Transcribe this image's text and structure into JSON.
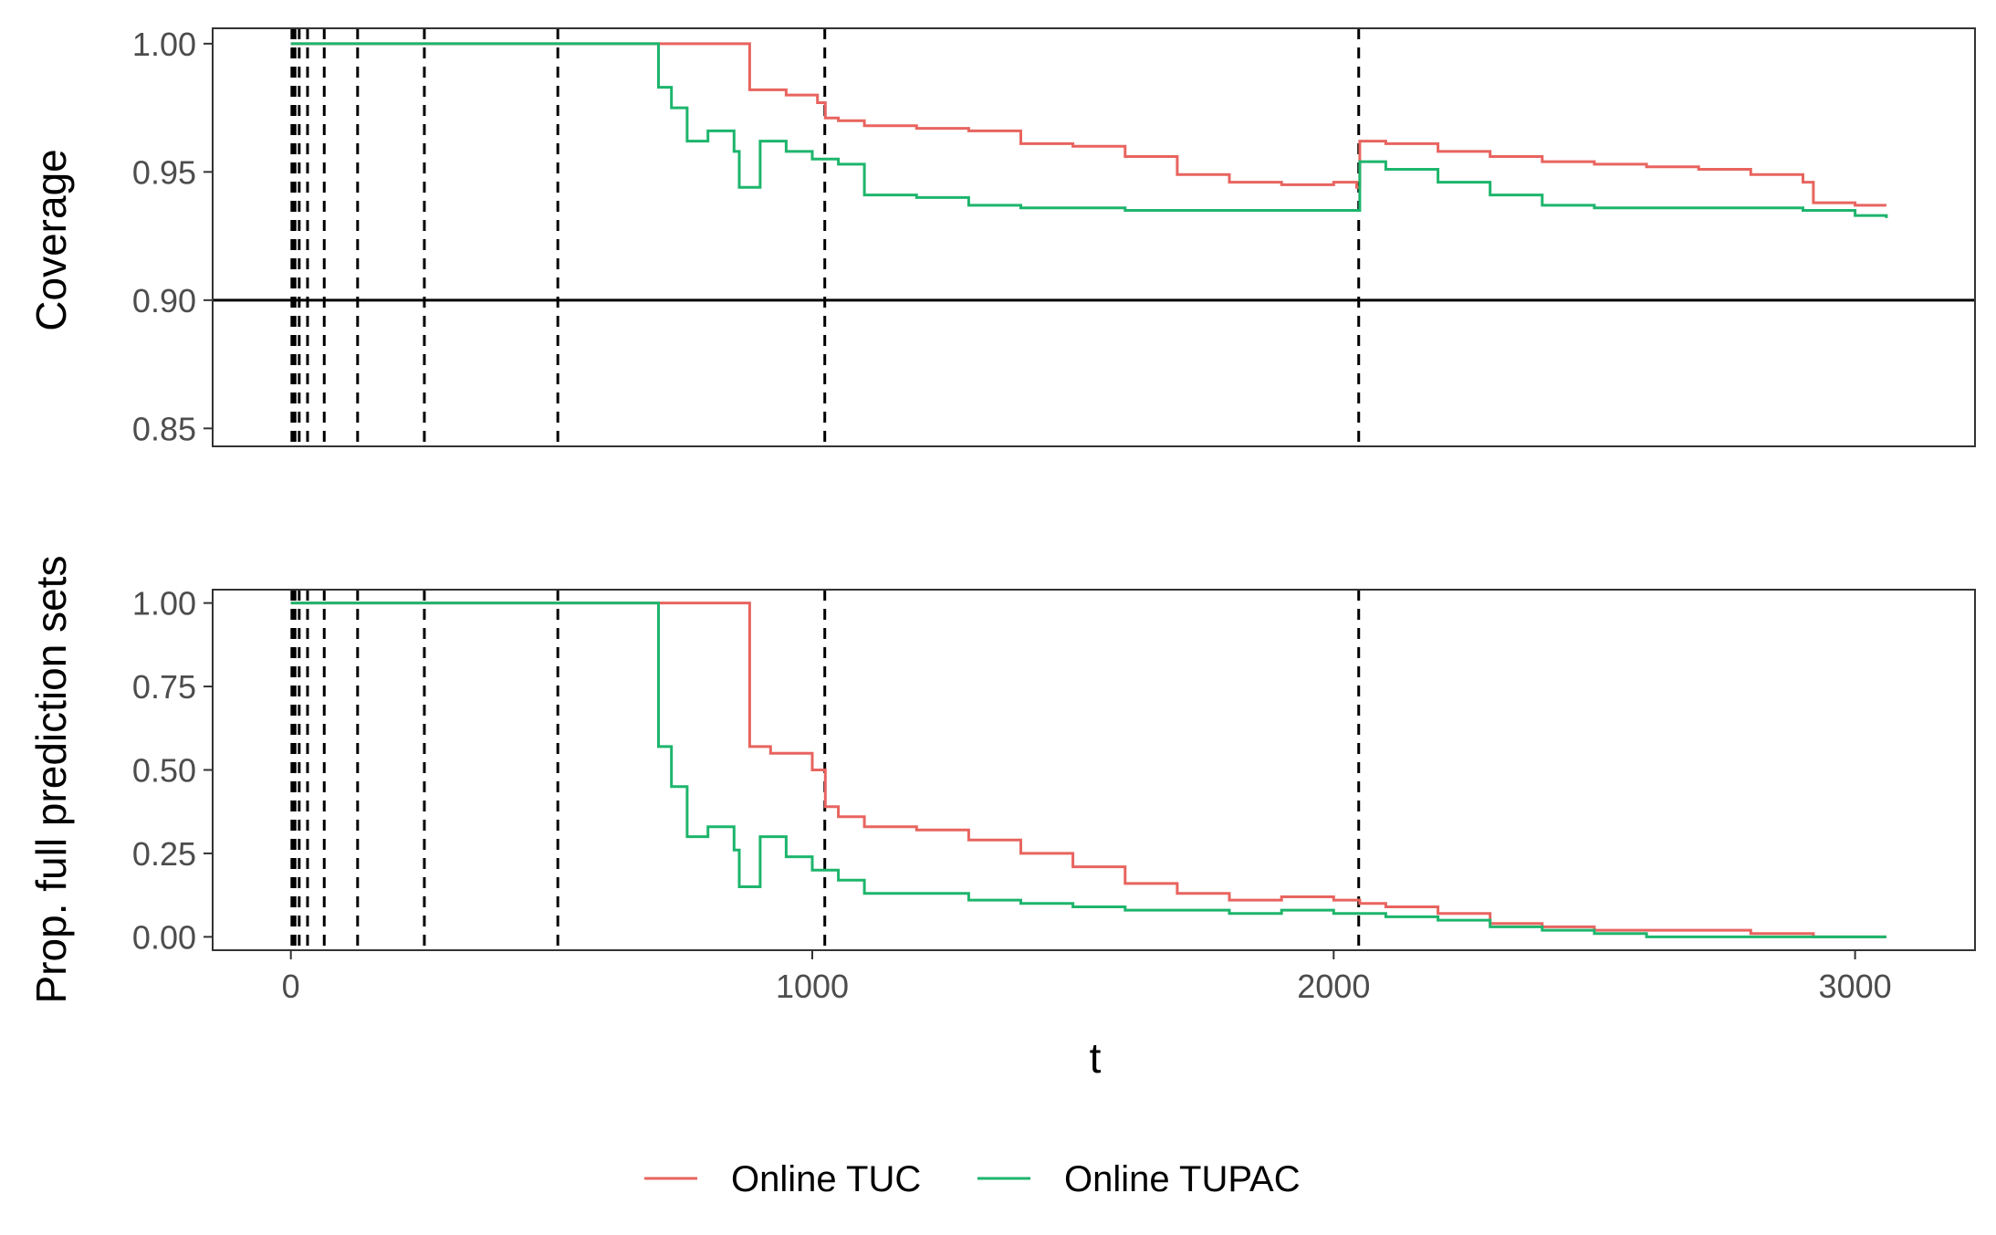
{
  "chart_data": {
    "type": "line",
    "xlabel": "t",
    "shared_ylabel": "Prop. full prediction sets",
    "x_ticks": [
      0,
      1000,
      2000,
      3000
    ],
    "xlim": [
      -150,
      3230
    ],
    "vertical_lines": [
      2,
      4,
      8,
      16,
      32,
      64,
      128,
      256,
      512,
      1024,
      2048
    ],
    "legend": {
      "position": "bottom",
      "entries": [
        {
          "name": "Online TUC",
          "color": "#e8645f"
        },
        {
          "name": "Online TUPAC",
          "color": "#1db56c"
        }
      ]
    },
    "panels": [
      {
        "name": "coverage",
        "ylabel": "Coverage",
        "ylim": [
          0.843,
          1.006
        ],
        "y_ticks": [
          "1.00",
          "0.95",
          "0.90",
          "0.85"
        ],
        "y_tick_values": [
          1.0,
          0.95,
          0.9,
          0.85
        ],
        "hline": 0.9,
        "series": [
          {
            "name": "Online TUC",
            "color": "#e8645f",
            "x": [
              0,
              700,
              875,
              880,
              950,
              1010,
              1025,
              1050,
              1100,
              1200,
              1300,
              1400,
              1500,
              1600,
              1700,
              1800,
              1900,
              2000,
              2044,
              2050,
              2100,
              2200,
              2300,
              2400,
              2500,
              2600,
              2700,
              2800,
              2900,
              2920,
              3000,
              3060
            ],
            "values": [
              1.0,
              1.0,
              1.0,
              0.982,
              0.98,
              0.977,
              0.971,
              0.97,
              0.968,
              0.967,
              0.966,
              0.961,
              0.96,
              0.956,
              0.949,
              0.946,
              0.945,
              0.946,
              0.944,
              0.962,
              0.961,
              0.958,
              0.956,
              0.954,
              0.953,
              0.952,
              0.951,
              0.949,
              0.946,
              0.938,
              0.937,
              0.937
            ]
          },
          {
            "name": "Online TUPAC",
            "color": "#1db56c",
            "x": [
              0,
              700,
              705,
              730,
              760,
              800,
              850,
              860,
              880,
              900,
              950,
              1000,
              1050,
              1100,
              1200,
              1300,
              1400,
              1500,
              1600,
              1700,
              1800,
              1900,
              2000,
              2044,
              2050,
              2100,
              2200,
              2300,
              2400,
              2500,
              2600,
              2700,
              2800,
              2900,
              3000,
              3060
            ],
            "values": [
              1.0,
              1.0,
              0.983,
              0.975,
              0.962,
              0.966,
              0.958,
              0.944,
              0.944,
              0.962,
              0.958,
              0.955,
              0.953,
              0.941,
              0.94,
              0.937,
              0.936,
              0.936,
              0.935,
              0.935,
              0.935,
              0.935,
              0.935,
              0.935,
              0.954,
              0.951,
              0.946,
              0.941,
              0.937,
              0.936,
              0.936,
              0.936,
              0.936,
              0.935,
              0.933,
              0.932
            ]
          }
        ]
      },
      {
        "name": "prop-full",
        "ylabel": "Prop. full prediction sets",
        "ylim": [
          -0.04,
          1.04
        ],
        "y_ticks": [
          "1.00",
          "0.75",
          "0.50",
          "0.25",
          "0.00"
        ],
        "y_tick_values": [
          1.0,
          0.75,
          0.5,
          0.25,
          0.0
        ],
        "series": [
          {
            "name": "Online TUC",
            "color": "#e8645f",
            "x": [
              0,
              700,
              875,
              880,
              920,
              950,
              1000,
              1025,
              1050,
              1100,
              1200,
              1300,
              1400,
              1500,
              1600,
              1700,
              1800,
              1900,
              2000,
              2050,
              2100,
              2200,
              2300,
              2400,
              2500,
              2600,
              2700,
              2800,
              2900,
              2920,
              3000,
              3060
            ],
            "values": [
              1.0,
              1.0,
              1.0,
              0.57,
              0.55,
              0.55,
              0.5,
              0.39,
              0.36,
              0.33,
              0.32,
              0.29,
              0.25,
              0.21,
              0.16,
              0.13,
              0.11,
              0.12,
              0.11,
              0.1,
              0.09,
              0.07,
              0.04,
              0.03,
              0.02,
              0.02,
              0.02,
              0.01,
              0.01,
              0.0,
              0.0,
              0.0
            ]
          },
          {
            "name": "Online TUPAC",
            "color": "#1db56c",
            "x": [
              0,
              700,
              705,
              730,
              760,
              800,
              850,
              860,
              880,
              900,
              950,
              1000,
              1050,
              1100,
              1200,
              1300,
              1400,
              1500,
              1600,
              1700,
              1800,
              1900,
              2000,
              2100,
              2200,
              2300,
              2400,
              2500,
              2600,
              2700,
              2800,
              2900,
              3000,
              3060
            ],
            "values": [
              1.0,
              1.0,
              0.57,
              0.45,
              0.3,
              0.33,
              0.26,
              0.15,
              0.15,
              0.3,
              0.24,
              0.2,
              0.17,
              0.13,
              0.13,
              0.11,
              0.1,
              0.09,
              0.08,
              0.08,
              0.07,
              0.08,
              0.07,
              0.06,
              0.05,
              0.03,
              0.02,
              0.01,
              0.0,
              0.0,
              0.0,
              0.0,
              0.0,
              0.0
            ]
          }
        ]
      }
    ]
  }
}
